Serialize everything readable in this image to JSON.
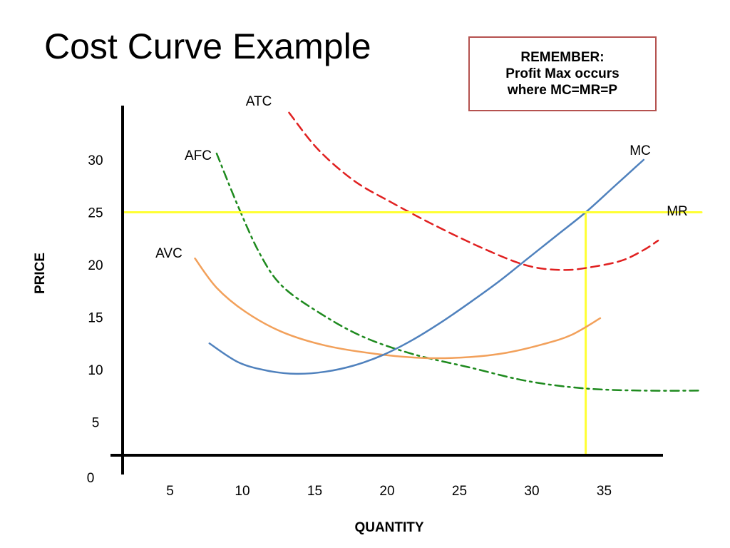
{
  "slide": {
    "title": "Cost Curve Example"
  },
  "reminder": {
    "line1": "REMEMBER:",
    "line2": "Profit Max occurs",
    "line3": "where MC=MR=P"
  },
  "chart_data": {
    "type": "line",
    "xlabel": "QUANTITY",
    "ylabel": "PRICE",
    "xlim": [
      0,
      40
    ],
    "ylim": [
      0,
      35
    ],
    "x_ticks": [
      5,
      10,
      15,
      20,
      25,
      30,
      35
    ],
    "y_ticks": [
      5,
      10,
      15,
      20,
      25,
      30
    ],
    "origin_label": "0",
    "grid": false,
    "series": [
      {
        "name": "ATC",
        "color": "#e02020",
        "style": "dashed",
        "points": [
          [
            11.5,
            34.5
          ],
          [
            13.5,
            31
          ],
          [
            16,
            28
          ],
          [
            18.5,
            26
          ],
          [
            21.5,
            23.8
          ],
          [
            25,
            21.5
          ],
          [
            28,
            19.9
          ],
          [
            30.5,
            19.5
          ],
          [
            32.5,
            19.8
          ],
          [
            34.5,
            20.4
          ],
          [
            36,
            21.4
          ],
          [
            37,
            22.3
          ]
        ]
      },
      {
        "name": "AFC",
        "color": "#1e8a1e",
        "style": "dash-dot",
        "points": [
          [
            6.5,
            30.6
          ],
          [
            8,
            25.5
          ],
          [
            9.5,
            21
          ],
          [
            11,
            18
          ],
          [
            13.5,
            15.5
          ],
          [
            16.5,
            13.2
          ],
          [
            20,
            11.5
          ],
          [
            24,
            10.2
          ],
          [
            28,
            8.9
          ],
          [
            32,
            8.2
          ],
          [
            36,
            8
          ],
          [
            40,
            8
          ]
        ]
      },
      {
        "name": "AVC",
        "color": "#f2a05a",
        "style": "solid",
        "points": [
          [
            5,
            20.6
          ],
          [
            6.5,
            17.8
          ],
          [
            8.5,
            15.5
          ],
          [
            11,
            13.6
          ],
          [
            14,
            12.3
          ],
          [
            17.5,
            11.5
          ],
          [
            21,
            11.1
          ],
          [
            24,
            11.2
          ],
          [
            26.5,
            11.6
          ],
          [
            29,
            12.4
          ],
          [
            31,
            13.3
          ],
          [
            33,
            14.9
          ]
        ]
      },
      {
        "name": "MC",
        "color": "#4f81bd",
        "style": "solid",
        "points": [
          [
            6,
            12.5
          ],
          [
            8,
            10.7
          ],
          [
            10,
            9.9
          ],
          [
            12,
            9.6
          ],
          [
            14,
            9.8
          ],
          [
            16,
            10.4
          ],
          [
            18,
            11.4
          ],
          [
            20,
            12.8
          ],
          [
            22,
            14.5
          ],
          [
            24,
            16.4
          ],
          [
            26,
            18.4
          ],
          [
            28,
            20.6
          ],
          [
            30,
            22.8
          ],
          [
            32,
            25
          ],
          [
            34,
            27.5
          ],
          [
            36,
            30
          ]
        ]
      },
      {
        "name": "MR",
        "color": "#ffff33",
        "style": "solid",
        "points": [
          [
            0,
            25
          ],
          [
            40,
            25
          ]
        ]
      }
    ],
    "annotations": [
      {
        "type": "vertical-line",
        "x": 32,
        "from_y": 0,
        "to_y": 25,
        "color": "#ffff33"
      }
    ]
  }
}
